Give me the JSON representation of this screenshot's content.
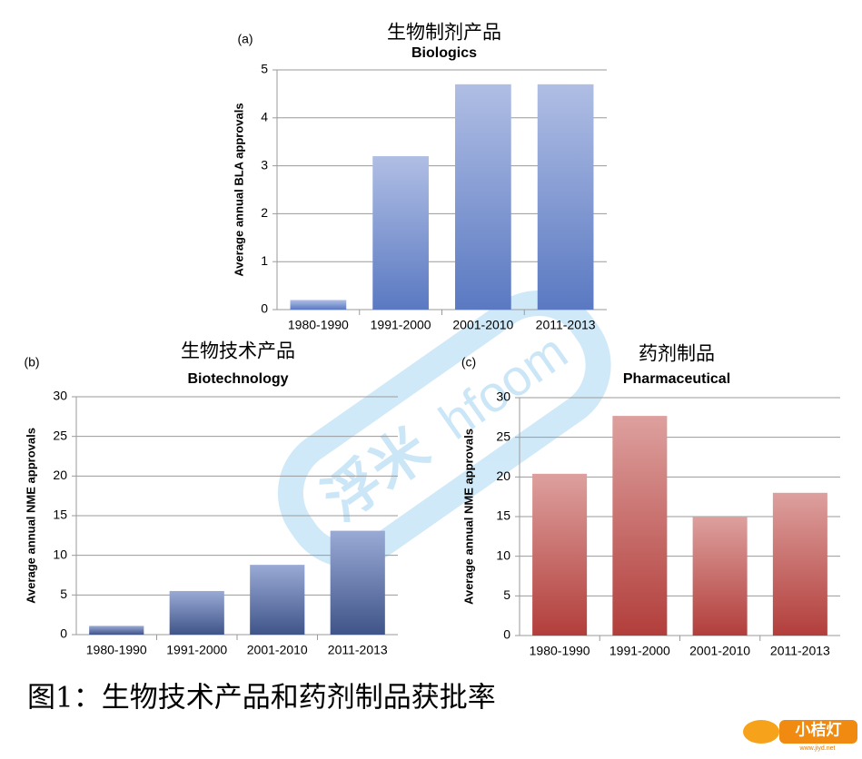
{
  "chart_data": [
    {
      "type": "bar",
      "panel": "(a)",
      "title": "生物制剂产品",
      "subtitle": "Biologics",
      "y_label": "Average annual BLA approvals",
      "categories": [
        "1980-1990",
        "1991-2000",
        "2001-2010",
        "2011-2013"
      ],
      "values": [
        0.2,
        3.2,
        4.7,
        4.7
      ],
      "ylim": [
        0,
        5
      ],
      "yticks": [
        0,
        1,
        2,
        3,
        4,
        5
      ],
      "grid": true,
      "colors": [
        "#b0bee4",
        "#5a79c2"
      ]
    },
    {
      "type": "bar",
      "panel": "(b)",
      "title": "生物技术产品",
      "subtitle": "Biotechnology",
      "y_label": "Average annual NME approvals",
      "categories": [
        "1980-1990",
        "1991-2000",
        "2001-2010",
        "2011-2013"
      ],
      "values": [
        1.1,
        5.5,
        8.8,
        13.1
      ],
      "ylim": [
        0,
        30
      ],
      "yticks": [
        0,
        5,
        10,
        15,
        20,
        25,
        30
      ],
      "grid": true,
      "colors": [
        "#9aaad6",
        "#3f5488"
      ]
    },
    {
      "type": "bar",
      "panel": "(c)",
      "title": "药剂制品",
      "subtitle": "Pharmaceutical",
      "y_label": "Average annual NME approvals",
      "categories": [
        "1980-1990",
        "1991-2000",
        "2001-2010",
        "2011-2013"
      ],
      "values": [
        20.4,
        27.7,
        15.0,
        18.0
      ],
      "ylim": [
        0,
        30
      ],
      "yticks": [
        0,
        5,
        10,
        15,
        20,
        25,
        30
      ],
      "grid": true,
      "colors": [
        "#dda09e",
        "#b23e3b"
      ]
    }
  ],
  "caption": "图1：生物技术产品和药剂制品获批率",
  "watermark": [
    "浮米",
    "hfoom"
  ],
  "logo": {
    "name": "小桔灯",
    "url": "www.jiyd.net"
  }
}
